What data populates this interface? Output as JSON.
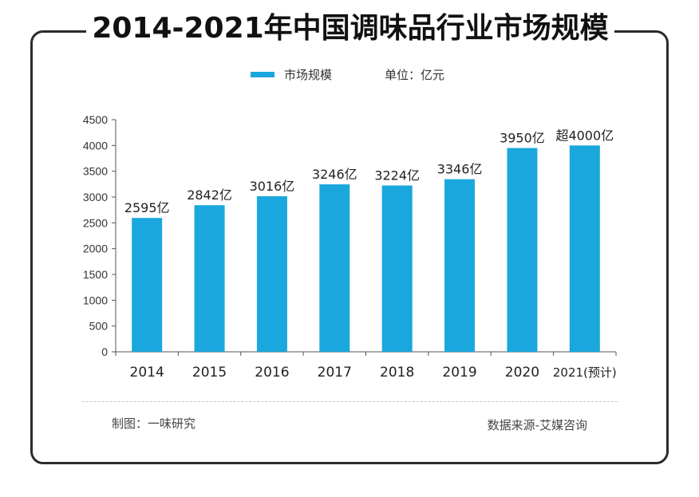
{
  "chart_data": {
    "type": "bar",
    "title": "2014-2021年中国调味品行业市场规模",
    "unit_label": "单位：亿元",
    "legend": [
      "市场规模"
    ],
    "categories": [
      "2014",
      "2015",
      "2016",
      "2017",
      "2018",
      "2019",
      "2020",
      "2021(预计)"
    ],
    "values": [
      2595,
      2842,
      3016,
      3246,
      3224,
      3346,
      3950,
      4000
    ],
    "data_labels": [
      "2595亿",
      "2842亿",
      "3016亿",
      "3246亿",
      "3224亿",
      "3346亿",
      "3950亿",
      "超4000亿"
    ],
    "yticks": [
      "0",
      "500",
      "1000",
      "1500",
      "2000",
      "2500",
      "3000",
      "3500",
      "4000",
      "4500"
    ],
    "ylim": [
      0,
      4500
    ],
    "xlabel": "",
    "ylabel": "",
    "grid": false,
    "bar_color": "#1aa7dd",
    "legend_position": "top-center"
  },
  "footer": {
    "maker": "制图：一味研究",
    "source": "数据来源-艾媒咨询"
  }
}
